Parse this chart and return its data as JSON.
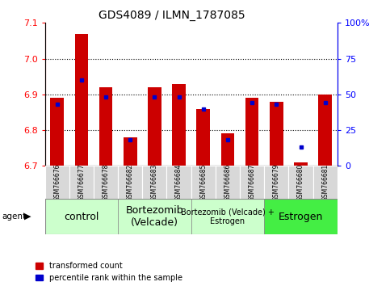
{
  "title": "GDS4089 / ILMN_1787085",
  "samples": [
    "GSM766676",
    "GSM766677",
    "GSM766678",
    "GSM766682",
    "GSM766683",
    "GSM766684",
    "GSM766685",
    "GSM766686",
    "GSM766687",
    "GSM766679",
    "GSM766680",
    "GSM766681"
  ],
  "red_values": [
    6.89,
    7.07,
    6.92,
    6.78,
    6.92,
    6.93,
    6.86,
    6.79,
    6.89,
    6.88,
    6.71,
    6.9
  ],
  "blue_values": [
    43,
    60,
    48,
    18,
    48,
    48,
    40,
    18,
    44,
    43,
    13,
    44
  ],
  "y_min": 6.7,
  "y_max": 7.1,
  "y_ticks": [
    6.7,
    6.8,
    6.9,
    7.0,
    7.1
  ],
  "right_y_ticks": [
    0,
    25,
    50,
    75,
    100
  ],
  "right_y_labels": [
    "0",
    "25",
    "50",
    "75",
    "100%"
  ],
  "group_labels": [
    "control",
    "Bortezomib\n(Velcade)",
    "Bortezomib (Velcade) +\nEstrogen",
    "Estrogen"
  ],
  "group_ranges": [
    [
      0,
      3
    ],
    [
      3,
      6
    ],
    [
      6,
      9
    ],
    [
      9,
      12
    ]
  ],
  "group_colors": [
    "#ccffcc",
    "#ccffcc",
    "#ccffcc",
    "#44ee44"
  ],
  "group_font_sizes": [
    9,
    9,
    7,
    9
  ],
  "agent_label": "agent",
  "legend_red": "transformed count",
  "legend_blue": "percentile rank within the sample",
  "bar_color": "#cc0000",
  "dot_color": "#0000cc",
  "bar_width": 0.55,
  "background_color": "#ffffff"
}
